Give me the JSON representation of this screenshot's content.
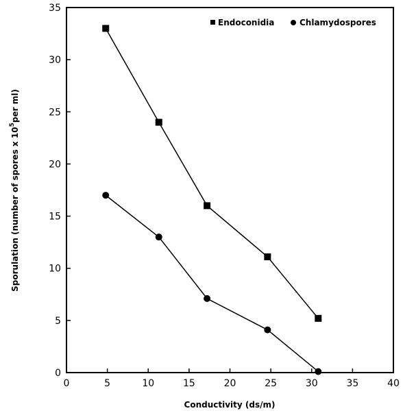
{
  "chart_data": {
    "type": "line",
    "title": "",
    "xlabel": "Conductivity (ds/m)",
    "ylabel": "Sporulation (number of spores x 10",
    "ylabel_sup": "5",
    "ylabel_tail": "per ml)",
    "xlim": [
      0,
      40
    ],
    "ylim": [
      0,
      35
    ],
    "xticks": [
      0,
      5,
      10,
      15,
      20,
      25,
      30,
      35,
      40
    ],
    "yticks": [
      0,
      5,
      10,
      15,
      20,
      25,
      30,
      35
    ],
    "grid": false,
    "legend_position": "top-right",
    "series": [
      {
        "name": "Endoconidia",
        "marker": "square",
        "x": [
          4.8,
          11.3,
          17.2,
          24.6,
          30.8
        ],
        "y": [
          33,
          24,
          16,
          11.1,
          5.2
        ]
      },
      {
        "name": "Chlamydospores",
        "marker": "circle",
        "x": [
          4.8,
          11.3,
          17.2,
          24.6,
          30.8
        ],
        "y": [
          17,
          13,
          7.1,
          4.1,
          0.1
        ]
      }
    ],
    "colors": {
      "line": "#000000",
      "marker": "#000000"
    }
  }
}
